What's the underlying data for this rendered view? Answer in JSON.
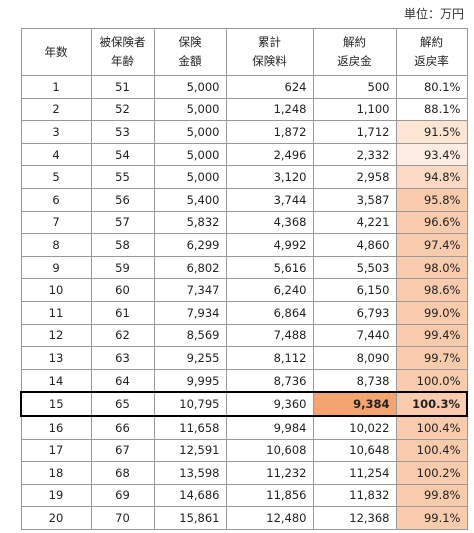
{
  "unit": "単位：万円",
  "table": {
    "header": [
      [
        "年数"
      ],
      [
        "被保険者",
        "年齢"
      ],
      [
        "保険",
        "金額"
      ],
      [
        "累計",
        "保険料"
      ],
      [
        "解約",
        "返戻金"
      ],
      [
        "解約",
        "返戻率"
      ]
    ],
    "rows": [
      [
        "1",
        "51",
        "5,000",
        "624",
        "500",
        "80.1%"
      ],
      [
        "2",
        "52",
        "5,000",
        "1,248",
        "1,100",
        "88.1%"
      ],
      [
        "3",
        "53",
        "5,000",
        "1,872",
        "1,712",
        "91.5%"
      ],
      [
        "4",
        "54",
        "5,000",
        "2,496",
        "2,332",
        "93.4%"
      ],
      [
        "5",
        "55",
        "5,000",
        "3,120",
        "2,958",
        "94.8%"
      ],
      [
        "6",
        "56",
        "5,400",
        "3,744",
        "3,587",
        "95.8%"
      ],
      [
        "7",
        "57",
        "5,832",
        "4,368",
        "4,221",
        "96.6%"
      ],
      [
        "8",
        "58",
        "6,299",
        "4,992",
        "4,860",
        "97.4%"
      ],
      [
        "9",
        "59",
        "6,802",
        "5,616",
        "5,503",
        "98.0%"
      ],
      [
        "10",
        "60",
        "7,347",
        "6,240",
        "6,150",
        "98.6%"
      ],
      [
        "11",
        "61",
        "7,934",
        "6,864",
        "6,793",
        "99.0%"
      ],
      [
        "12",
        "62",
        "8,569",
        "7,488",
        "7,440",
        "99.4%"
      ],
      [
        "13",
        "63",
        "9,255",
        "8,112",
        "8,090",
        "99.7%"
      ],
      [
        "14",
        "64",
        "9,995",
        "8,736",
        "8,738",
        "100.0%"
      ],
      [
        "15",
        "65",
        "10,795",
        "9,360",
        "9,384",
        "100.3%"
      ],
      [
        "16",
        "66",
        "11,658",
        "9,984",
        "10,022",
        "100.4%"
      ],
      [
        "17",
        "67",
        "12,591",
        "10,608",
        "10,648",
        "100.4%"
      ],
      [
        "18",
        "68",
        "13,598",
        "11,232",
        "11,254",
        "100.2%"
      ],
      [
        "19",
        "69",
        "14,686",
        "11,856",
        "11,832",
        "99.8%"
      ],
      [
        "20",
        "70",
        "15,861",
        "12,480",
        "12,368",
        "99.1%"
      ]
    ]
  }
}
